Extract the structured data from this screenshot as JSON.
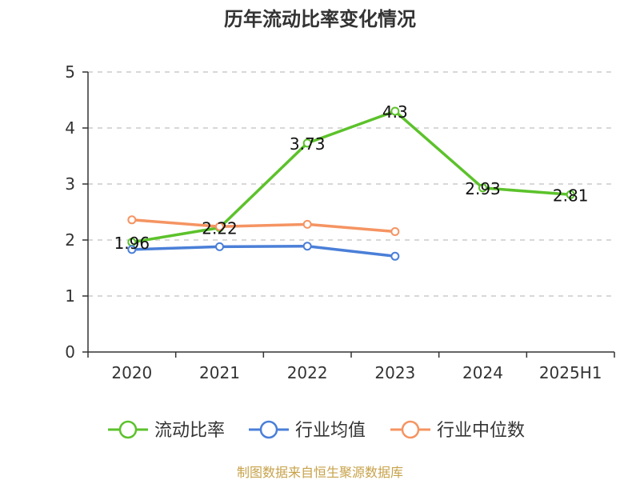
{
  "chart_data": {
    "type": "line",
    "title": "历年流动比率变化情况",
    "xlabel": "",
    "ylabel": "",
    "categories": [
      "2020",
      "2021",
      "2022",
      "2023",
      "2024",
      "2025H1"
    ],
    "ylim": [
      0,
      5
    ],
    "yticks": [
      "0",
      "1",
      "2",
      "3",
      "4",
      "5"
    ],
    "grid": true,
    "legend_position": "bottom",
    "series": [
      {
        "name": "流动比率",
        "color": "#5cc22b",
        "values": [
          1.96,
          2.22,
          3.73,
          4.3,
          2.93,
          2.81
        ],
        "labels": [
          "1.96",
          "2.22",
          "3.73",
          "4.3",
          "2.93",
          "2.81"
        ]
      },
      {
        "name": "行业均值",
        "color": "#4a7fd8",
        "values": [
          1.83,
          1.88,
          1.89,
          1.71,
          null,
          null
        ],
        "labels": []
      },
      {
        "name": "行业中位数",
        "color": "#f59462",
        "values": [
          2.36,
          2.24,
          2.28,
          2.15,
          null,
          null
        ],
        "labels": []
      }
    ]
  },
  "source": "制图数据来自恒生聚源数据库"
}
